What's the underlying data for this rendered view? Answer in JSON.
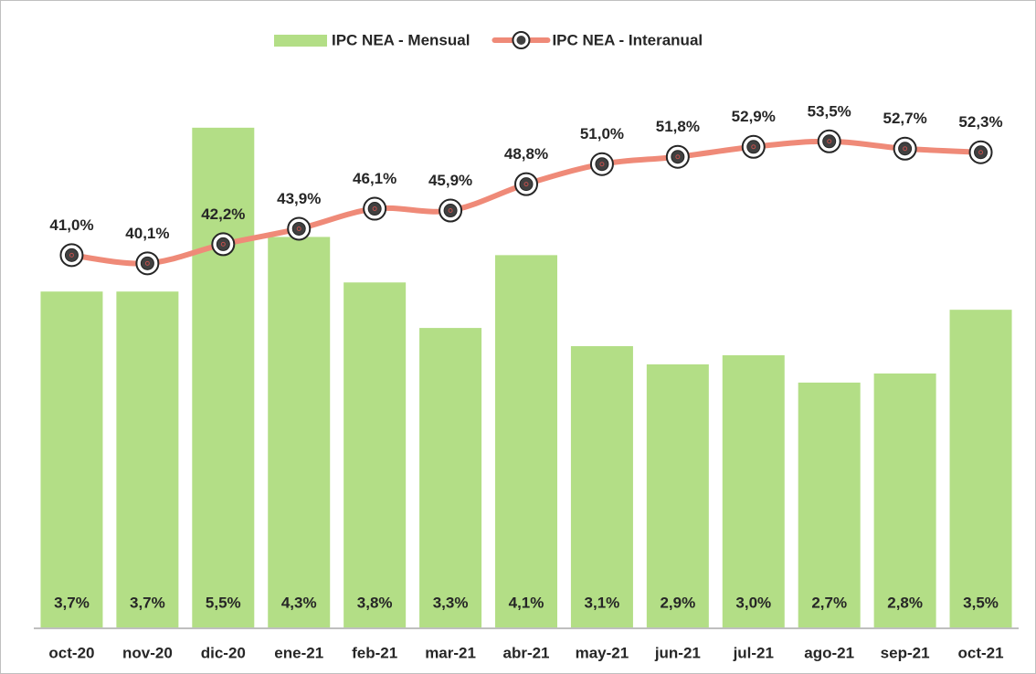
{
  "chart_data": {
    "type": "bar_line",
    "categories": [
      "oct-20",
      "nov-20",
      "dic-20",
      "ene-21",
      "feb-21",
      "mar-21",
      "abr-21",
      "may-21",
      "jun-21",
      "jul-21",
      "ago-21",
      "sep-21",
      "oct-21"
    ],
    "series": [
      {
        "name": "IPC NEA - Mensual",
        "type": "bar",
        "color": "#b3de86",
        "values": [
          3.7,
          3.7,
          5.5,
          4.3,
          3.8,
          3.3,
          4.1,
          3.1,
          2.9,
          3.0,
          2.7,
          2.8,
          3.5
        ],
        "value_labels": [
          "3,7%",
          "3,7%",
          "5,5%",
          "4,3%",
          "3,8%",
          "3,3%",
          "4,1%",
          "3,1%",
          "2,9%",
          "3,0%",
          "2,7%",
          "2,8%",
          "3,5%"
        ]
      },
      {
        "name": "IPC NEA - Interanual",
        "type": "line",
        "axis": "y2",
        "color": "#ef8a78",
        "values": [
          41.0,
          40.1,
          42.2,
          43.9,
          46.1,
          45.9,
          48.8,
          51.0,
          51.8,
          52.9,
          53.5,
          52.7,
          52.3
        ],
        "value_labels": [
          "41,0%",
          "40,1%",
          "42,2%",
          "43,9%",
          "46,1%",
          "45,9%",
          "48,8%",
          "51,0%",
          "51,8%",
          "52,9%",
          "53,5%",
          "52,7%",
          "52,3%"
        ]
      }
    ],
    "ylim": [
      0,
      6
    ],
    "y2lim": [
      0,
      60
    ]
  }
}
